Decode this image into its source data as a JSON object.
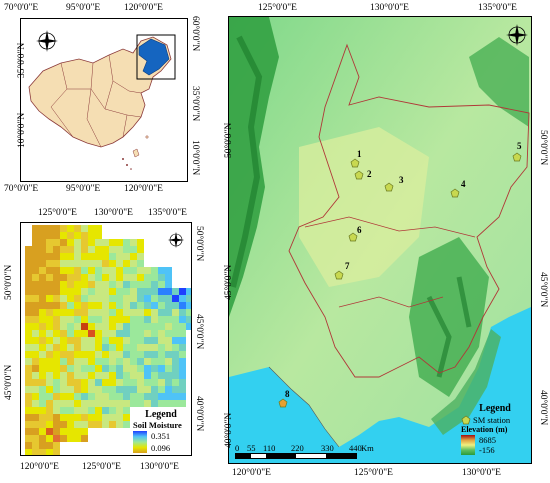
{
  "china_map": {
    "top_labels": [
      "70°0'0\"E",
      "95°0'0\"E",
      "120°0'0\"E"
    ],
    "bottom_labels": [
      "70°0'0\"E",
      "95°0'0\"E",
      "120°0'0\"E"
    ],
    "left_labels": [
      "35°0'0\"N",
      "10°0'0\"N"
    ],
    "right_labels": [
      "60°0'0\"N",
      "35°0'0\"N",
      "10°0'0\"N"
    ],
    "land_color": "#f5deb3",
    "highlight_color": "#1565c0"
  },
  "soil_map": {
    "top_labels": [
      "125°0'0\"E",
      "130°0'0\"E",
      "135°0'0\"E"
    ],
    "bottom_labels": [
      "120°0'0\"E",
      "125°0'0\"E",
      "130°0'0\"E"
    ],
    "left_labels": [
      "50°0'0\"N",
      "45°0'0\"N"
    ],
    "right_labels": [
      "50°0'0\"N",
      "45°0'0\"N",
      "40°0'0\"N"
    ],
    "legend_title": "Legend",
    "legend_subtitle": "Soil Moisture",
    "legend_max": "0.351",
    "legend_min": "0.096"
  },
  "elevation_map": {
    "top_labels": [
      "125°0'0\"E",
      "130°0'0\"E",
      "135°0'0\"E"
    ],
    "bottom_labels": [
      "120°0'0\"E",
      "125°0'0\"E",
      "130°0'0\"E"
    ],
    "left_labels": [
      "50°0'0\"N",
      "45°0'0\"N",
      "40°0'0\"N"
    ],
    "right_labels": [
      "50°0'0\"N",
      "45°0'0\"N",
      "40°0'0\"N"
    ],
    "stations": [
      {
        "id": "1",
        "label": "1"
      },
      {
        "id": "2",
        "label": "2"
      },
      {
        "id": "3",
        "label": "3"
      },
      {
        "id": "4",
        "label": "4"
      },
      {
        "id": "5",
        "label": "5"
      },
      {
        "id": "6",
        "label": "6"
      },
      {
        "id": "7",
        "label": "7"
      },
      {
        "id": "8",
        "label": "8"
      }
    ],
    "legend_title": "Legend",
    "station_label": "SM station",
    "elevation_label": "Elevation (m)",
    "elev_max": "8685",
    "elev_min": "-156",
    "scale_ticks": [
      "0",
      "55",
      "110",
      "220",
      "330",
      "440"
    ],
    "scale_unit": "Km",
    "station_color": "#c8d850",
    "sea_color": "#33d0f0"
  },
  "compass": {
    "n": "N",
    "s": "S",
    "e": "E",
    "w": "W"
  }
}
